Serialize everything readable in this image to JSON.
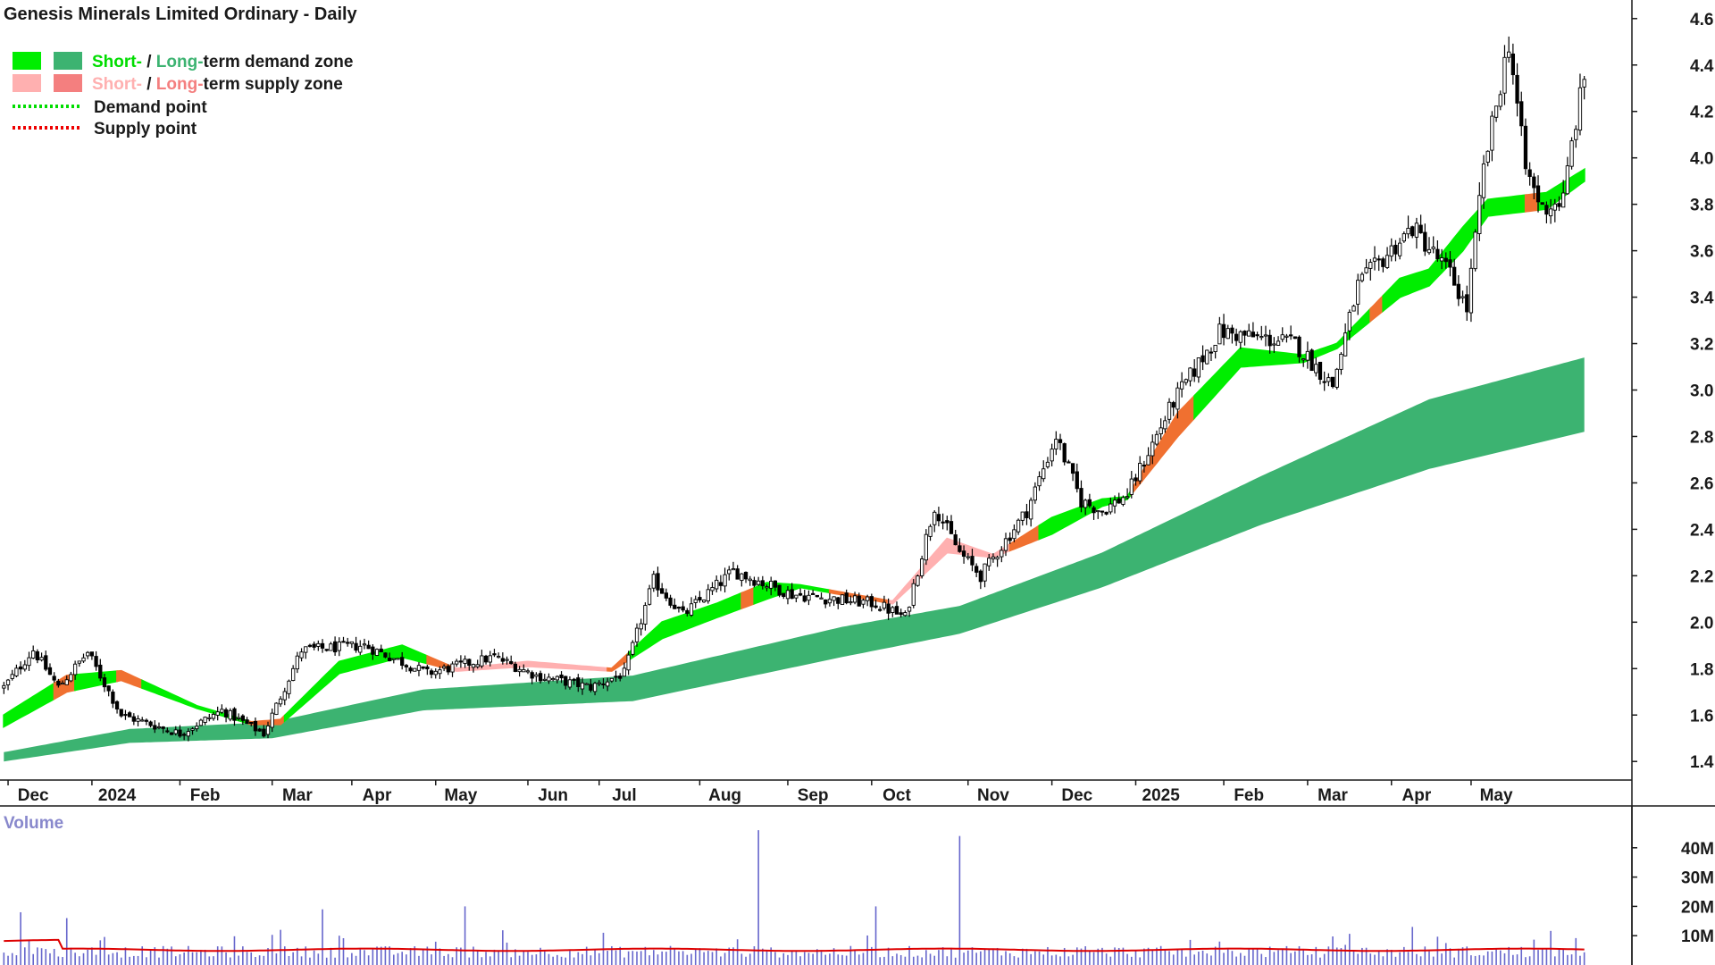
{
  "chart_data": {
    "type": "candlestick",
    "title": "Genesis Minerals Limited Ordinary - Daily",
    "legend": {
      "demand_zone": {
        "short": "Short-",
        "sep": " / ",
        "long": "Long-",
        "rest": "term demand zone"
      },
      "supply_zone": {
        "short": "Short-",
        "sep": " / ",
        "long": "Long-",
        "rest": "term supply zone"
      },
      "demand_point": "Demand point",
      "supply_point": "Supply point"
    },
    "colors": {
      "short_demand": "#00ee00",
      "long_demand": "#3cb371",
      "short_supply": "#ffb0b0",
      "long_supply": "#f47f7f",
      "orange_supply": "#f07030",
      "demand_point": "#00dd00",
      "supply_point": "#ee0000",
      "volume_bar": "#6666cc",
      "volume_average": "#dd0000",
      "candle": "#000000"
    },
    "x_labels": [
      "Dec",
      "2024",
      "Feb",
      "Mar",
      "Apr",
      "May",
      "Jun",
      "Jul",
      "Aug",
      "Sep",
      "Oct",
      "Nov",
      "Dec",
      "2025",
      "Feb",
      "Mar",
      "Apr",
      "May"
    ],
    "y_ticks": [
      "1.4",
      "1.6",
      "1.8",
      "2.0",
      "2.2",
      "2.4",
      "2.6",
      "2.8",
      "3.0",
      "3.2",
      "3.4",
      "3.6",
      "3.8",
      "4.0",
      "4.2",
      "4.4",
      "4.6"
    ],
    "ylim": [
      1.32,
      4.68
    ],
    "close_path": [
      [
        0,
        1.72
      ],
      [
        7,
        1.88
      ],
      [
        13,
        1.72
      ],
      [
        20,
        1.87
      ],
      [
        28,
        1.6
      ],
      [
        42,
        1.52
      ],
      [
        52,
        1.62
      ],
      [
        62,
        1.52
      ],
      [
        71,
        1.88
      ],
      [
        86,
        1.9
      ],
      [
        101,
        1.78
      ],
      [
        117,
        1.85
      ],
      [
        127,
        1.77
      ],
      [
        140,
        1.72
      ],
      [
        148,
        1.78
      ],
      [
        155,
        2.18
      ],
      [
        162,
        2.03
      ],
      [
        174,
        2.22
      ],
      [
        188,
        2.12
      ],
      [
        208,
        2.08
      ],
      [
        215,
        2.02
      ],
      [
        222,
        2.5
      ],
      [
        228,
        2.3
      ],
      [
        233,
        2.2
      ],
      [
        244,
        2.48
      ],
      [
        251,
        2.8
      ],
      [
        257,
        2.52
      ],
      [
        262,
        2.48
      ],
      [
        268,
        2.55
      ],
      [
        279,
        2.95
      ],
      [
        290,
        3.25
      ],
      [
        308,
        3.2
      ],
      [
        317,
        3.02
      ],
      [
        323,
        3.45
      ],
      [
        336,
        3.7
      ],
      [
        345,
        3.5
      ],
      [
        349,
        3.35
      ],
      [
        353,
        3.95
      ],
      [
        359,
        4.5
      ],
      [
        363,
        3.95
      ],
      [
        367,
        3.78
      ],
      [
        372,
        3.82
      ],
      [
        374,
        4.06
      ],
      [
        377,
        4.35
      ]
    ],
    "short_zone_path": [
      [
        0,
        1.55,
        1.6
      ],
      [
        15,
        1.7,
        1.77
      ],
      [
        28,
        1.75,
        1.79
      ],
      [
        46,
        1.63,
        1.64
      ],
      [
        59,
        1.56,
        1.57
      ],
      [
        66,
        1.56,
        1.58
      ],
      [
        80,
        1.78,
        1.83
      ],
      [
        95,
        1.85,
        1.9
      ],
      [
        108,
        1.79,
        1.8
      ],
      [
        125,
        1.81,
        1.83
      ],
      [
        145,
        1.79,
        1.8
      ],
      [
        157,
        1.93,
        2.0
      ],
      [
        170,
        2.02,
        2.08
      ],
      [
        182,
        2.1,
        2.17
      ],
      [
        190,
        2.15,
        2.16
      ],
      [
        212,
        2.08,
        2.09
      ],
      [
        225,
        2.3,
        2.36
      ],
      [
        236,
        2.28,
        2.29
      ],
      [
        250,
        2.38,
        2.45
      ],
      [
        262,
        2.5,
        2.53
      ],
      [
        268,
        2.53,
        2.54
      ],
      [
        280,
        2.8,
        2.9
      ],
      [
        295,
        3.1,
        3.18
      ],
      [
        310,
        3.12,
        3.15
      ],
      [
        318,
        3.18,
        3.2
      ],
      [
        333,
        3.4,
        3.48
      ],
      [
        340,
        3.45,
        3.52
      ],
      [
        348,
        3.6,
        3.7
      ],
      [
        354,
        3.75,
        3.82
      ],
      [
        368,
        3.78,
        3.85
      ],
      [
        377,
        3.9,
        3.95
      ]
    ],
    "orange_segments": [
      [
        12,
        16
      ],
      [
        27,
        32
      ],
      [
        58,
        66
      ],
      [
        101,
        106
      ],
      [
        144,
        148
      ],
      [
        176,
        178
      ],
      [
        197,
        210
      ],
      [
        240,
        246
      ],
      [
        269,
        283
      ],
      [
        326,
        328
      ],
      [
        363,
        365
      ]
    ],
    "long_zone_path": [
      [
        0,
        1.4,
        1.44
      ],
      [
        30,
        1.48,
        1.54
      ],
      [
        64,
        1.5,
        1.57
      ],
      [
        100,
        1.62,
        1.71
      ],
      [
        150,
        1.66,
        1.77
      ],
      [
        200,
        1.85,
        1.98
      ],
      [
        228,
        1.95,
        2.07
      ],
      [
        262,
        2.15,
        2.3
      ],
      [
        300,
        2.42,
        2.63
      ],
      [
        340,
        2.66,
        2.96
      ],
      [
        377,
        2.82,
        3.14
      ]
    ],
    "volume_ticks": [
      "10M",
      "20M",
      "30M",
      "40M"
    ],
    "volume_max": 50,
    "volume_spikes": [
      [
        4,
        18
      ],
      [
        15,
        16
      ],
      [
        66,
        12
      ],
      [
        76,
        19
      ],
      [
        80,
        10
      ],
      [
        110,
        20
      ],
      [
        143,
        11
      ],
      [
        180,
        46
      ],
      [
        208,
        20
      ],
      [
        228,
        44
      ],
      [
        336,
        13
      ]
    ],
    "volume_average": 5.2
  }
}
